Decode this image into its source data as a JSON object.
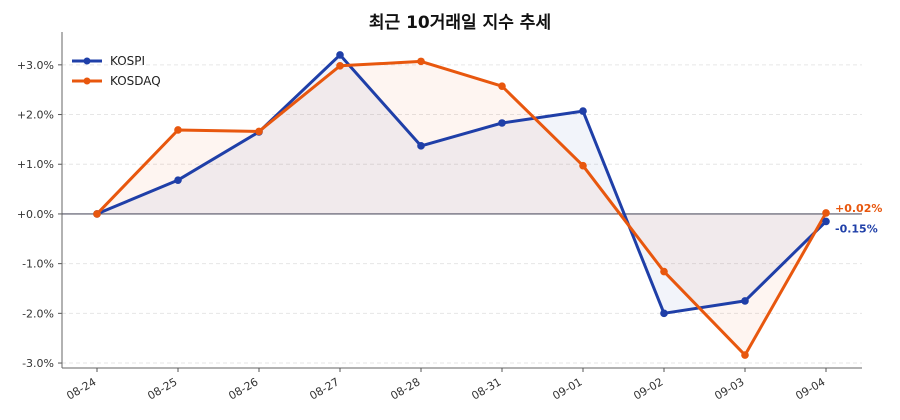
{
  "chart_data": {
    "type": "line",
    "title": "최근 10거래일 지수 추세",
    "xlabel": "",
    "ylabel": "",
    "categories": [
      "08-24",
      "08-25",
      "08-26",
      "08-27",
      "08-28",
      "08-31",
      "09-01",
      "09-02",
      "09-03",
      "09-04"
    ],
    "y_ticks": [
      "-3.0%",
      "-2.0%",
      "-1.0%",
      "+0.0%",
      "+1.0%",
      "+2.0%",
      "+3.0%"
    ],
    "ylim": [
      -3.1,
      3.5
    ],
    "grid": true,
    "legend_position": "top-left",
    "series": [
      {
        "name": "KOSPI",
        "color": "#1f3fa8",
        "values": [
          0.0,
          0.68,
          1.65,
          3.2,
          1.37,
          1.83,
          2.07,
          -2.0,
          -1.75,
          -0.15
        ],
        "end_label": "-0.15%"
      },
      {
        "name": "KOSDAQ",
        "color": "#e8570e",
        "values": [
          0.0,
          1.69,
          1.66,
          2.98,
          3.07,
          2.57,
          0.97,
          -1.16,
          -2.84,
          0.02
        ],
        "end_label": "+0.02%"
      }
    ]
  }
}
